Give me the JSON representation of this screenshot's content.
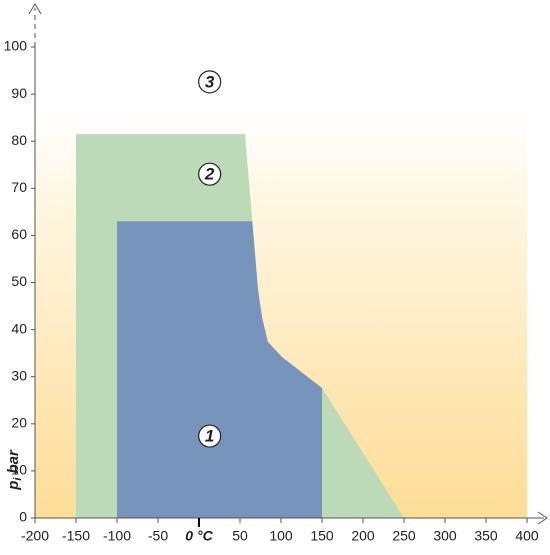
{
  "chart_data": {
    "type": "area",
    "xlim": [
      -200,
      400
    ],
    "ylim": [
      0,
      100
    ],
    "xticks": [
      -200,
      -150,
      -100,
      -50,
      {
        "value": 0,
        "label": "0 °C"
      },
      50,
      100,
      150,
      200,
      250,
      300,
      350,
      400
    ],
    "yticks": [
      0,
      10,
      20,
      30,
      40,
      50,
      60,
      70,
      80,
      90,
      100
    ],
    "y_label": "p",
    "y_label_sub": "i",
    "y_label_unit": "bar",
    "series": [
      {
        "color": "#bcd9b8",
        "x": [
          -150,
          -150,
          56,
          65,
          72,
          77,
          84,
          101,
          150,
          250
        ],
        "values": [
          0,
          81.5,
          81.5,
          63,
          48.4,
          42.5,
          37.4,
          34.2,
          27.6,
          0
        ]
      },
      {
        "color": "#7794bd",
        "x": [
          -100,
          -100,
          65,
          72,
          77,
          84,
          101,
          150,
          150
        ],
        "values": [
          0,
          63,
          63,
          48.4,
          42.5,
          37.4,
          34.2,
          27.6,
          0
        ]
      }
    ],
    "annotations": [
      {
        "text": "1",
        "x": 13,
        "y": 17.4
      },
      {
        "text": "2",
        "x": 13,
        "y": 73
      },
      {
        "text": "3",
        "x": 13,
        "y": 92.6
      }
    ]
  }
}
